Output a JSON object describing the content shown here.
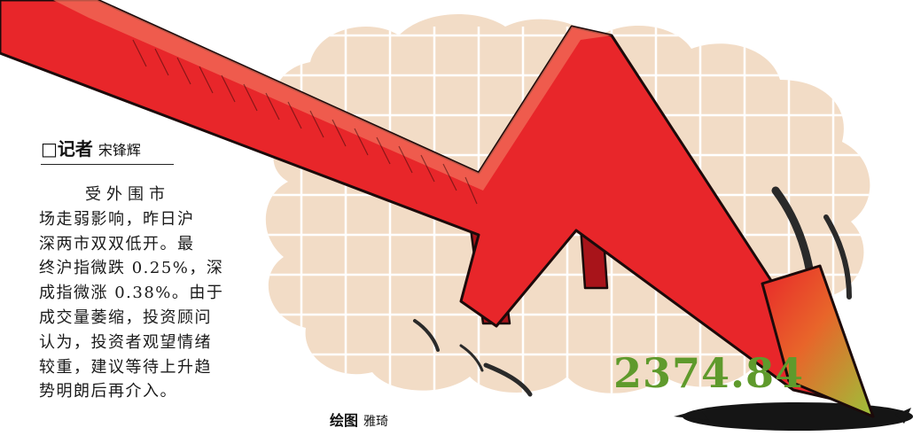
{
  "byline": {
    "box": "□",
    "label": "记者",
    "name": "宋锋辉"
  },
  "article_lines": [
    "受外围市",
    "场走弱影响，昨日沪",
    "深两市双双低开。最",
    "终沪指微跌 0.25%，深",
    "成指微涨 0.38%。由于",
    "成交量萎缩，投资顾问",
    "认为，投资者观望情绪",
    "较重，建议等待上升趋",
    "势明朗后再介入。"
  ],
  "illustration": {
    "index_value": "2374.84",
    "credit_label": "绘图",
    "credit_name": "雅琦"
  },
  "colors": {
    "arrow_red": "#e8262a",
    "arrow_dark": "#a8141a",
    "arrow_tip_green": "#8fba3a",
    "cloud_beige": "#f2dcc6",
    "grid_line": "#ffffff",
    "value_green": "#5f9a2c"
  }
}
